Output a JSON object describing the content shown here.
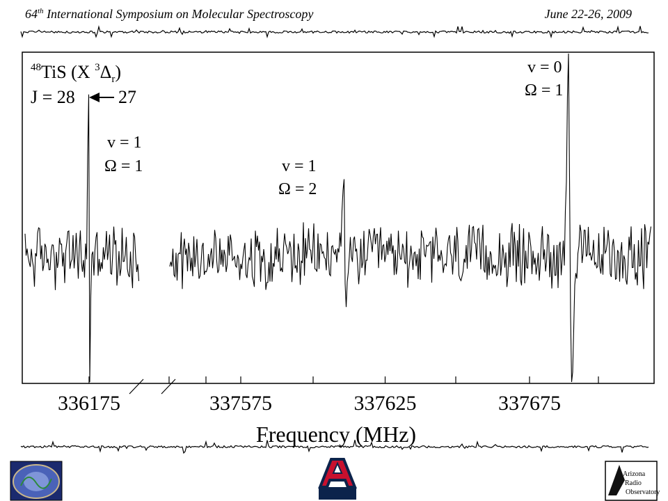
{
  "header": {
    "ordinal": "64",
    "ordinal_suffix": "th",
    "conference": "International Symposium on Molecular Spectroscopy",
    "dates": "June 22-26, 2009"
  },
  "chart_data": {
    "type": "line",
    "title_species": {
      "isotope": "48",
      "molecule": "TiS (X ",
      "state_mult": "3",
      "state_greek": "Δ",
      "state_sub": "r",
      "close": ")"
    },
    "transition": {
      "upper": "J = 28",
      "lower": "27"
    },
    "xlabel": "Frequency (MHz)",
    "ylabel": "",
    "x_break": [
      336175,
      337550
    ],
    "xticks": [
      336175,
      337575,
      337625,
      337675
    ],
    "xtick_labels": [
      "336175",
      "337575",
      "337625",
      "337675"
    ],
    "ylim": [
      -1.1,
      1.1
    ],
    "grid": false,
    "lines": [
      {
        "v_label": "v = 1",
        "omega_label": "Ω = 1",
        "freq": 336175,
        "amplitude": 0.9
      },
      {
        "v_label": "v = 1",
        "omega_label": "Ω = 2",
        "freq": 337611,
        "amplitude": 0.45
      },
      {
        "v_label": "v = 0",
        "omega_label": "Ω = 1",
        "freq": 337689,
        "amplitude": 1.0
      }
    ]
  },
  "footer": {
    "left_logo": "symposium-logo",
    "center_logo": "university-of-arizona-logo",
    "right_logo": "arizona-radio-observatory-logo",
    "aro_line1": "Arizona",
    "aro_line2": "Radio",
    "aro_line3": "Observatory"
  }
}
